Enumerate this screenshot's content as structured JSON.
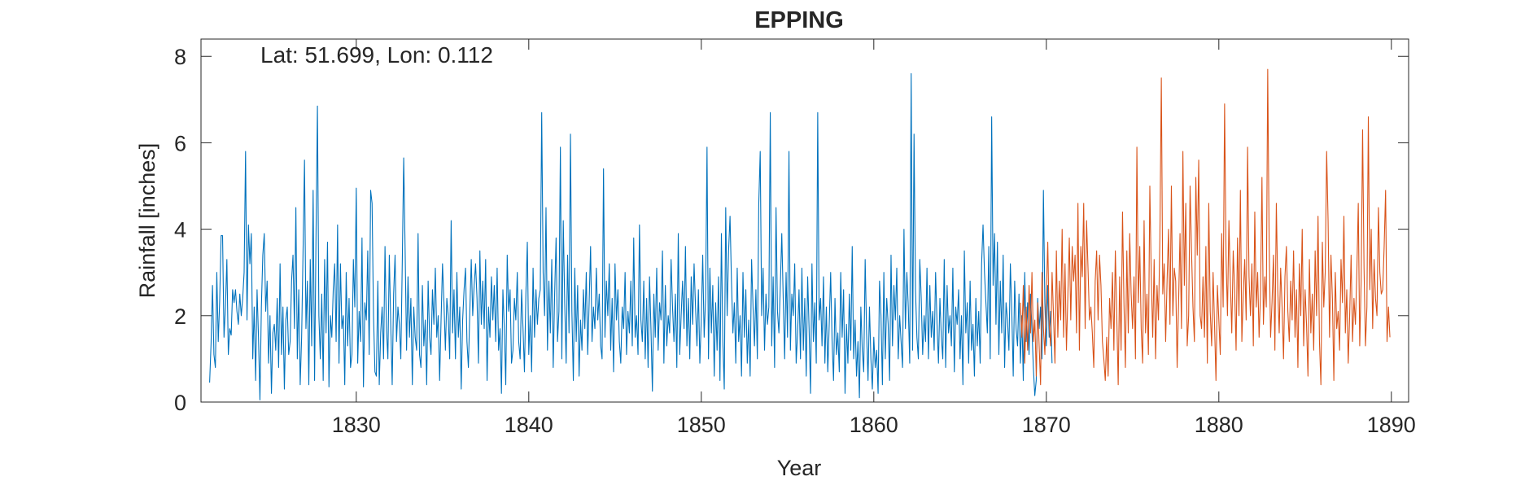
{
  "chart_data": {
    "type": "line",
    "title": "EPPING",
    "annotation": "Lat: 51.699, Lon: 0.112",
    "xlabel": "Year",
    "ylabel": "Rainfall [inches]",
    "xlim": [
      1821,
      1891
    ],
    "ylim": [
      0,
      8.4
    ],
    "x_ticks": [
      1830,
      1840,
      1850,
      1860,
      1870,
      1880,
      1890
    ],
    "y_ticks": [
      0,
      2,
      4,
      6,
      8
    ],
    "grid": false,
    "box": true,
    "series": [
      {
        "color": "#0072BD",
        "x_start": 1821.5,
        "step": 0.08333,
        "values": [
          0.45,
          1.35,
          2.7,
          1.1,
          0.8,
          3.0,
          1.4,
          2.35,
          3.85,
          3.85,
          1.5,
          2.2,
          3.3,
          1.1,
          1.7,
          1.55,
          2.6,
          2.3,
          2.6,
          2.1,
          1.8,
          2.5,
          2.0,
          2.4,
          3.0,
          5.8,
          1.9,
          4.1,
          3.2,
          3.9,
          1.0,
          2.2,
          0.5,
          2.6,
          1.5,
          0.05,
          2.2,
          3.4,
          3.9,
          2.1,
          2.8,
          0.9,
          2.0,
          0.2,
          1.6,
          1.8,
          1.2,
          2.4,
          0.8,
          3.2,
          1.1,
          2.2,
          0.3,
          1.9,
          2.2,
          1.1,
          1.4,
          2.8,
          3.4,
          1.7,
          4.5,
          1.0,
          2.6,
          0.4,
          1.5,
          3.5,
          5.6,
          1.7,
          2.8,
          0.4,
          3.3,
          1.3,
          4.9,
          0.5,
          3.8,
          6.85,
          2.0,
          1.0,
          2.5,
          0.5,
          3.3,
          1.6,
          3.7,
          0.35,
          2.0,
          1.5,
          2.6,
          3.2,
          1.4,
          4.1,
          0.9,
          3.2,
          1.7,
          2.0,
          0.4,
          3.0,
          1.3,
          2.4,
          0.8,
          1.1,
          3.3,
          2.2,
          4.95,
          0.9,
          2.1,
          1.4,
          3.8,
          0.35,
          2.3,
          1.9,
          3.5,
          1.1,
          4.9,
          4.6,
          2.0,
          0.7,
          0.6,
          2.8,
          0.4,
          1.6,
          2.2,
          1.0,
          3.6,
          1.7,
          1.0,
          3.4,
          1.8,
          0.4,
          2.5,
          3.4,
          1.4,
          2.2,
          1.8,
          1.0,
          3.2,
          5.65,
          3.5,
          1.2,
          2.9,
          1.5,
          2.4,
          0.4,
          2.2,
          1.5,
          1.2,
          3.9,
          1.1,
          0.8,
          2.7,
          1.3,
          1.9,
          0.4,
          2.8,
          1.5,
          1.1,
          2.6,
          1.8,
          3.1,
          1.5,
          2.0,
          0.5,
          1.9,
          3.2,
          2.3,
          1.2,
          2.4,
          2.0,
          1.0,
          4.2,
          1.6,
          2.6,
          1.0,
          3.0,
          1.5,
          2.2,
          0.3,
          1.9,
          2.6,
          3.1,
          1.4,
          0.8,
          2.1,
          3.3,
          2.0,
          2.7,
          3.2,
          2.4,
          0.9,
          3.5,
          1.8,
          2.8,
          1.7,
          3.3,
          0.5,
          2.2,
          1.5,
          2.9,
          1.9,
          2.7,
          1.4,
          3.1,
          1.2,
          1.7,
          0.2,
          2.6,
          1.7,
          0.4,
          3.4,
          2.1,
          2.6,
          0.9,
          1.2,
          2.4,
          1.9,
          3.0,
          1.4,
          1.0,
          2.6,
          1.7,
          0.7,
          2.5,
          3.7,
          1.1,
          2.0,
          0.7,
          3.1,
          1.5,
          2.6,
          1.8,
          2.4,
          2.6,
          6.7,
          3.0,
          2.0,
          4.5,
          1.2,
          2.8,
          1.6,
          3.3,
          0.8,
          2.5,
          3.8,
          1.4,
          2.1,
          5.9,
          1.0,
          4.2,
          2.3,
          0.9,
          3.4,
          1.6,
          6.2,
          2.1,
          0.5,
          3.1,
          1.4,
          2.7,
          0.6,
          1.9,
          1.2,
          2.6,
          1.7,
          3.0,
          1.1,
          2.3,
          3.6,
          1.4,
          2.2,
          1.7,
          3.1,
          1.9,
          2.5,
          1.3,
          1.0,
          5.4,
          1.5,
          2.8,
          2.0,
          3.2,
          1.2,
          2.4,
          0.7,
          3.2,
          1.9,
          2.6,
          1.4,
          0.9,
          2.2,
          1.7,
          3.0,
          1.1,
          2.1,
          1.6,
          2.8,
          1.3,
          3.8,
          1.5,
          2.0,
          1.1,
          4.1,
          1.9,
          1.4,
          2.8,
          1.0,
          2.4,
          0.8,
          2.9,
          1.7,
          0.25,
          2.5,
          1.5,
          3.1,
          1.2,
          2.3,
          1.9,
          3.5,
          0.9,
          2.7,
          1.3,
          2.0,
          1.6,
          3.3,
          2.2,
          1.4,
          2.5,
          0.8,
          3.9,
          1.1,
          2.0,
          2.8,
          1.7,
          3.6,
          1.3,
          2.4,
          1.0,
          2.9,
          1.8,
          3.2,
          2.2,
          1.3,
          2.6,
          0.9,
          1.9,
          3.4,
          1.5,
          2.4,
          5.9,
          1.0,
          3.1,
          1.6,
          2.7,
          0.6,
          2.3,
          1.2,
          2.9,
          0.5,
          3.9,
          1.4,
          0.3,
          4.5,
          2.0,
          3.5,
          4.3,
          2.8,
          1.6,
          2.3,
          0.9,
          3.1,
          1.4,
          2.0,
          0.6,
          3.0,
          1.5,
          2.6,
          0.9,
          1.9,
          0.6,
          3.3,
          2.2,
          1.3,
          2.6,
          1.0,
          4.6,
          5.8,
          2.0,
          3.1,
          1.2,
          2.5,
          1.8,
          2.2,
          6.7,
          1.3,
          2.9,
          0.8,
          4.5,
          2.1,
          1.6,
          2.7,
          3.9,
          2.4,
          1.0,
          3.0,
          1.5,
          5.8,
          1.2,
          2.5,
          2.0,
          3.2,
          0.9,
          1.6,
          2.6,
          1.0,
          3.1,
          1.2,
          2.4,
          0.6,
          2.9,
          1.7,
          0.2,
          3.2,
          1.4,
          2.3,
          0.9,
          6.7,
          1.9,
          2.4,
          1.3,
          2.9,
          0.9,
          2.2,
          0.7,
          1.8,
          3.0,
          1.4,
          0.5,
          2.4,
          1.1,
          1.6,
          0.7,
          3.0,
          1.5,
          2.6,
          0.2,
          1.8,
          0.9,
          2.5,
          1.2,
          3.6,
          1.0,
          1.9,
          0.6,
          1.4,
          0.1,
          2.2,
          1.2,
          0.7,
          3.3,
          1.6,
          0.5,
          2.2,
          1.0,
          0.3,
          1.5,
          0.8,
          1.2,
          0.2,
          2.8,
          2.0,
          0.4,
          3.0,
          1.0,
          2.4,
          1.8,
          0.5,
          3.4,
          1.3,
          2.7,
          1.9,
          3.1,
          1.0,
          2.0,
          1.4,
          0.8,
          4.0,
          1.7,
          3.0,
          2.2,
          0.9,
          7.6,
          1.2,
          6.2,
          2.6,
          1.5,
          1.0,
          3.3,
          2.4,
          1.1,
          2.0,
          1.4,
          3.1,
          1.0,
          2.7,
          1.5,
          2.1,
          1.2,
          3.0,
          1.8,
          0.9,
          2.4,
          1.5,
          1.0,
          3.3,
          0.8,
          2.7,
          1.6,
          2.0,
          1.3,
          3.1,
          0.7,
          2.2,
          1.8,
          2.6,
          1.0,
          2.0,
          0.4,
          3.5,
          1.6,
          2.3,
          0.9,
          2.8,
          1.2,
          1.8,
          0.6,
          2.4,
          1.3,
          2.1,
          0.9,
          3.2,
          4.1,
          3.0,
          2.3,
          1.6,
          3.6,
          1.0,
          6.6,
          2.7,
          3.9,
          1.8,
          3.7,
          1.1,
          2.8,
          1.6,
          3.4,
          0.8,
          2.3,
          1.9,
          1.2,
          3.2,
          2.1,
          0.6,
          2.8,
          1.7,
          1.3,
          2.5,
          0.9,
          2.0,
          0.5,
          3.0,
          1.4,
          2.3,
          1.1,
          2.5,
          1.7,
          0.8,
          0.15,
          0.5,
          2.4,
          1.7,
          2.2,
          1.0,
          4.9,
          2.3,
          1.3,
          2.7,
          1.5,
          2.1,
          0.9
        ]
      },
      {
        "color": "#D95319",
        "x_start": 1868.5,
        "step": 0.08333,
        "values": [
          2.3,
          1.5,
          2.7,
          0.9,
          2.2,
          1.2,
          2.7,
          1.6,
          3.0,
          1.4,
          1.9,
          0.6,
          2.3,
          1.3,
          0.4,
          3.0,
          1.7,
          1.1,
          2.5,
          3.7,
          1.8,
          1.3,
          3.0,
          2.0,
          0.9,
          3.5,
          1.5,
          2.8,
          1.9,
          4.0,
          1.5,
          3.2,
          1.2,
          2.5,
          3.8,
          1.9,
          3.6,
          2.8,
          3.4,
          1.6,
          4.6,
          1.2,
          3.6,
          2.9,
          4.6,
          1.7,
          4.2,
          3.1,
          1.9,
          2.2,
          1.6,
          0.8,
          2.8,
          3.5,
          1.9,
          3.4,
          2.7,
          1.4,
          1.0,
          0.5,
          1.5,
          0.6,
          2.4,
          1.7,
          3.0,
          1.2,
          3.5,
          2.0,
          0.4,
          2.9,
          1.2,
          4.4,
          2.3,
          0.8,
          3.5,
          1.6,
          3.9,
          2.5,
          1.7,
          2.9,
          1.0,
          5.9,
          2.3,
          3.6,
          1.7,
          0.9,
          4.2,
          1.6,
          2.5,
          1.1,
          5.0,
          2.9,
          1.5,
          3.3,
          1.0,
          2.7,
          1.9,
          3.8,
          7.5,
          2.5,
          3.2,
          1.4,
          2.8,
          4.0,
          1.8,
          5.0,
          2.0,
          3.1,
          2.8,
          0.8,
          2.3,
          3.9,
          1.7,
          5.8,
          2.7,
          4.6,
          1.3,
          2.0,
          5.0,
          3.5,
          2.2,
          1.4,
          5.2,
          3.4,
          5.6,
          2.0,
          1.7,
          2.9,
          1.5,
          3.6,
          0.9,
          4.6,
          2.1,
          1.3,
          3.0,
          1.8,
          0.5,
          2.7,
          1.9,
          1.1,
          3.9,
          2.2,
          6.9,
          3.4,
          2.0,
          4.2,
          2.8,
          1.6,
          3.5,
          2.6,
          1.2,
          3.8,
          2.0,
          4.9,
          1.4,
          2.5,
          3.3,
          1.9,
          5.9,
          2.9,
          2.0,
          3.2,
          1.3,
          4.4,
          2.2,
          3.0,
          1.5,
          2.5,
          5.2,
          1.8,
          2.9,
          2.2,
          7.7,
          3.7,
          1.5,
          2.3,
          3.4,
          1.2,
          4.6,
          2.6,
          1.6,
          3.1,
          2.2,
          1.0,
          2.9,
          3.6,
          2.1,
          1.4,
          2.8,
          1.9,
          3.5,
          1.5,
          2.6,
          0.8,
          3.2,
          2.0,
          4.0,
          1.3,
          2.6,
          1.8,
          0.6,
          3.3,
          1.6,
          2.5,
          1.2,
          3.5,
          2.0,
          4.3,
          1.4,
          0.4,
          3.7,
          2.2,
          3.0,
          5.8,
          4.2,
          1.5,
          3.4,
          2.4,
          0.5,
          3.0,
          1.7,
          2.1,
          1.2,
          3.3,
          2.3,
          4.3,
          1.6,
          2.6,
          0.9,
          2.0,
          3.4,
          1.4,
          2.4,
          1.8,
          3.0,
          4.6,
          1.3,
          2.8,
          6.3,
          3.1,
          1.3,
          2.2,
          6.6,
          2.6,
          4.0,
          1.7,
          3.3,
          2.4,
          2.0,
          4.5,
          3.0,
          2.5,
          2.6,
          3.6,
          4.9,
          1.4,
          2.2,
          1.5
        ]
      }
    ]
  }
}
